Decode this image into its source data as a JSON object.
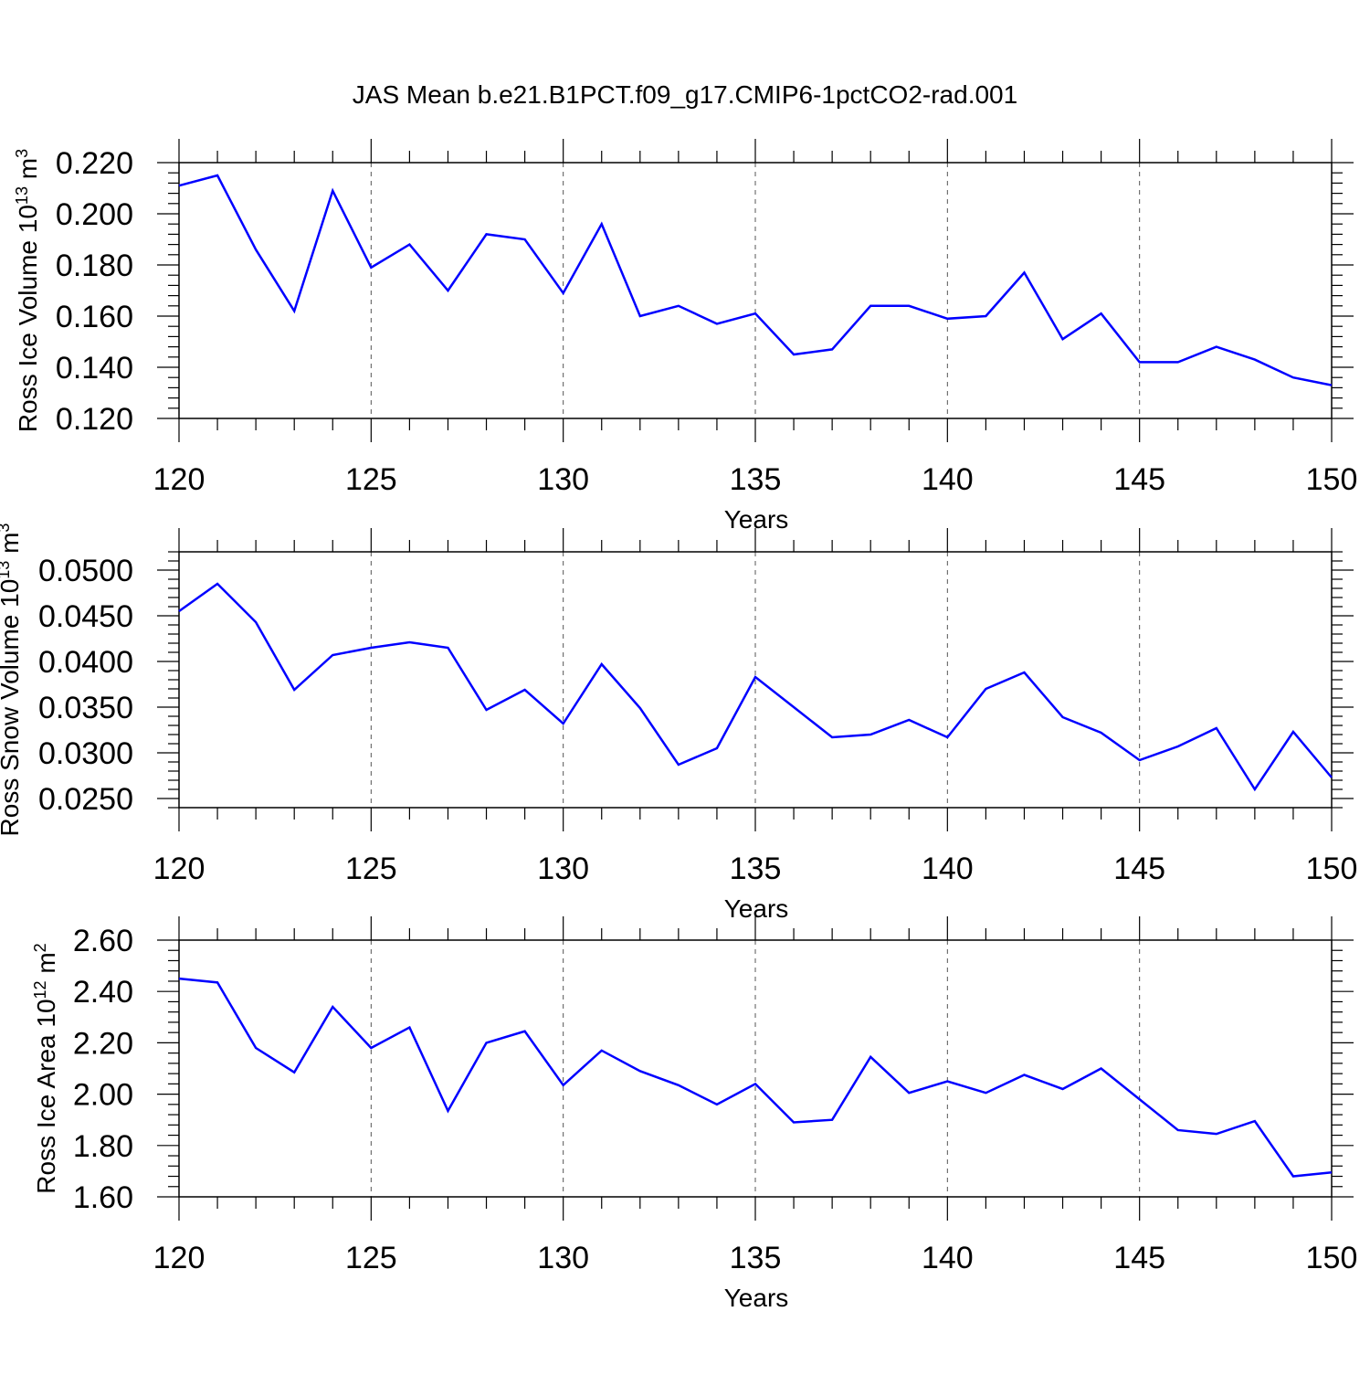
{
  "title": "JAS Mean b.e21.B1PCT.f09_g17.CMIP6-1pctCO2-rad.001",
  "colors": {
    "series": "#0000ff",
    "axis": "#000000",
    "grid": "#555555"
  },
  "chart_data": [
    {
      "type": "line",
      "title": "",
      "xlabel": "Years",
      "ylabel": {
        "base": "Ross Ice Volume 10",
        "exp": "13",
        "unit": " m",
        "unit_exp": "3"
      },
      "xlim": [
        120,
        150
      ],
      "xticks": [
        120,
        125,
        130,
        135,
        140,
        145,
        150
      ],
      "xtick_labels": [
        "120",
        "125",
        "130",
        "135",
        "140",
        "145",
        "150"
      ],
      "ylim": [
        0.12,
        0.22
      ],
      "yticks": [
        0.12,
        0.14,
        0.16,
        0.18,
        0.2,
        0.22
      ],
      "ytick_labels": [
        "0.120",
        "0.140",
        "0.160",
        "0.180",
        "0.200",
        "0.220"
      ],
      "grid": "vertical dashed at major x ticks",
      "x": [
        120,
        121,
        122,
        123,
        124,
        125,
        126,
        127,
        128,
        129,
        130,
        131,
        132,
        133,
        134,
        135,
        136,
        137,
        138,
        139,
        140,
        141,
        142,
        143,
        144,
        145,
        146,
        147,
        148,
        149,
        150
      ],
      "series": [
        {
          "name": "Ross Ice Volume",
          "values": [
            0.211,
            0.215,
            0.186,
            0.162,
            0.209,
            0.179,
            0.188,
            0.17,
            0.192,
            0.19,
            0.169,
            0.196,
            0.16,
            0.164,
            0.157,
            0.161,
            0.145,
            0.147,
            0.164,
            0.164,
            0.159,
            0.16,
            0.177,
            0.151,
            0.161,
            0.142,
            0.142,
            0.148,
            0.143,
            0.136,
            0.133
          ]
        }
      ]
    },
    {
      "type": "line",
      "title": "",
      "xlabel": "Years",
      "ylabel": {
        "base": "Ross Snow Volume 10",
        "exp": "13",
        "unit": " m",
        "unit_exp": "3"
      },
      "xlim": [
        120,
        150
      ],
      "xticks": [
        120,
        125,
        130,
        135,
        140,
        145,
        150
      ],
      "xtick_labels": [
        "120",
        "125",
        "130",
        "135",
        "140",
        "145",
        "150"
      ],
      "ylim": [
        0.024,
        0.052
      ],
      "yticks": [
        0.025,
        0.03,
        0.035,
        0.04,
        0.045,
        0.05
      ],
      "ytick_labels": [
        "0.0250",
        "0.0300",
        "0.0350",
        "0.0400",
        "0.0450",
        "0.0500"
      ],
      "grid": "vertical dashed at major x ticks",
      "x": [
        120,
        121,
        122,
        123,
        124,
        125,
        126,
        127,
        128,
        129,
        130,
        131,
        132,
        133,
        134,
        135,
        136,
        137,
        138,
        139,
        140,
        141,
        142,
        143,
        144,
        145,
        146,
        147,
        148,
        149,
        150
      ],
      "series": [
        {
          "name": "Ross Snow Volume",
          "values": [
            0.0455,
            0.0485,
            0.0443,
            0.0369,
            0.0407,
            0.0415,
            0.0421,
            0.0415,
            0.0347,
            0.0369,
            0.0332,
            0.0397,
            0.0349,
            0.0287,
            0.0305,
            0.0383,
            0.035,
            0.0317,
            0.032,
            0.0336,
            0.0317,
            0.037,
            0.0388,
            0.0339,
            0.0322,
            0.0292,
            0.0307,
            0.0327,
            0.026,
            0.0323,
            0.0273
          ]
        }
      ]
    },
    {
      "type": "line",
      "title": "",
      "xlabel": "Years",
      "ylabel": {
        "base": "Ross Ice Area 10",
        "exp": "12",
        "unit": " m",
        "unit_exp": "2"
      },
      "xlim": [
        120,
        150
      ],
      "xticks": [
        120,
        125,
        130,
        135,
        140,
        145,
        150
      ],
      "xtick_labels": [
        "120",
        "125",
        "130",
        "135",
        "140",
        "145",
        "150"
      ],
      "ylim": [
        1.6,
        2.6
      ],
      "yticks": [
        1.6,
        1.8,
        2.0,
        2.2,
        2.4,
        2.6
      ],
      "ytick_labels": [
        "1.60",
        "1.80",
        "2.00",
        "2.20",
        "2.40",
        "2.60"
      ],
      "grid": "vertical dashed at major x ticks",
      "x": [
        120,
        121,
        122,
        123,
        124,
        125,
        126,
        127,
        128,
        129,
        130,
        131,
        132,
        133,
        134,
        135,
        136,
        137,
        138,
        139,
        140,
        141,
        142,
        143,
        144,
        145,
        146,
        147,
        148,
        149,
        150
      ],
      "series": [
        {
          "name": "Ross Ice Area",
          "values": [
            2.45,
            2.435,
            2.18,
            2.085,
            2.34,
            2.18,
            2.26,
            1.935,
            2.2,
            2.245,
            2.035,
            2.17,
            2.09,
            2.035,
            1.96,
            2.04,
            1.89,
            1.9,
            2.145,
            2.005,
            2.05,
            2.005,
            2.075,
            2.02,
            2.1,
            1.98,
            1.86,
            1.845,
            1.895,
            1.68,
            1.695
          ]
        }
      ]
    }
  ]
}
